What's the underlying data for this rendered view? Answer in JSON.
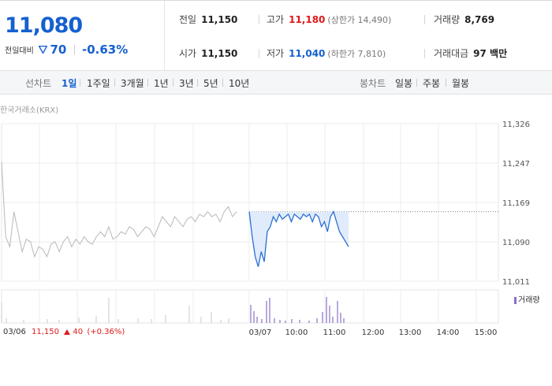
{
  "summary": {
    "current_price": "11,080",
    "change_label": "전일대비",
    "change_value": "70",
    "change_percent": "-0.63%",
    "stats": {
      "prev_close": {
        "label": "전일",
        "value": "11,150"
      },
      "high": {
        "label": "고가",
        "value": "11,180",
        "sub": "(상한가 14,490)"
      },
      "volume": {
        "label": "거래량",
        "value": "8,769"
      },
      "open": {
        "label": "시가",
        "value": "11,150"
      },
      "low": {
        "label": "저가",
        "value": "11,040",
        "sub": "(하한가 7,810)"
      },
      "trade_value": {
        "label": "거래대금",
        "value": "97 백만"
      }
    }
  },
  "period_bar": {
    "line_chart_label": "선차트",
    "periods": [
      "1일",
      "1주일",
      "3개월",
      "1년",
      "3년",
      "5년",
      "10년"
    ],
    "active_period": "1일",
    "candle_label": "봉차트",
    "candle_periods": [
      "일봉",
      "주봉",
      "월봉"
    ]
  },
  "chart": {
    "exchange_label": "한국거래소(KRX)",
    "volume_legend": "거래량",
    "prev_day": {
      "date": "03/06",
      "close": "11,150",
      "change": "40",
      "percent": "(+0.36%)"
    },
    "colors": {
      "up": "#e0191c",
      "down": "#1560d0",
      "line_prev": "#b8b8b8",
      "line_today": "#2a6fd4",
      "volume": "#8a70c8"
    }
  },
  "chart_data": {
    "type": "line",
    "y_ticks": [
      "11,326",
      "11,247",
      "11,169",
      "11,090",
      "11,011"
    ],
    "x_ticks": [
      "03/07",
      "10:00",
      "11:00",
      "12:00",
      "13:00",
      "14:00",
      "15:00"
    ],
    "ylim": [
      11011,
      11326
    ],
    "reference_line": 11150,
    "prev_day_series": {
      "name": "03/06",
      "values": [
        11250,
        11100,
        11080,
        11150,
        11110,
        11070,
        11095,
        11090,
        11060,
        11080,
        11075,
        11060,
        11085,
        11090,
        11070,
        11090,
        11100,
        11080,
        11095,
        11085,
        11100,
        11090,
        11085,
        11100,
        11110,
        11100,
        11120,
        11095,
        11100,
        11110,
        11105,
        11120,
        11115,
        11100,
        11110,
        11120,
        11115,
        11100,
        11120,
        11140,
        11130,
        11120,
        11140,
        11130,
        11120,
        11135,
        11140,
        11130,
        11145,
        11140,
        11150,
        11140,
        11145,
        11130,
        11150,
        11160,
        11140,
        11150
      ]
    },
    "today_series": {
      "name": "03/07",
      "values": [
        11150,
        11100,
        11060,
        11040,
        11070,
        11050,
        11110,
        11120,
        11140,
        11130,
        11145,
        11135,
        11140,
        11145,
        11130,
        11145,
        11140,
        11135,
        11145,
        11140,
        11145,
        11130,
        11145,
        11140,
        11120,
        11130,
        11110,
        11140,
        11150,
        11130,
        11110,
        11100,
        11090,
        11080
      ]
    }
  }
}
